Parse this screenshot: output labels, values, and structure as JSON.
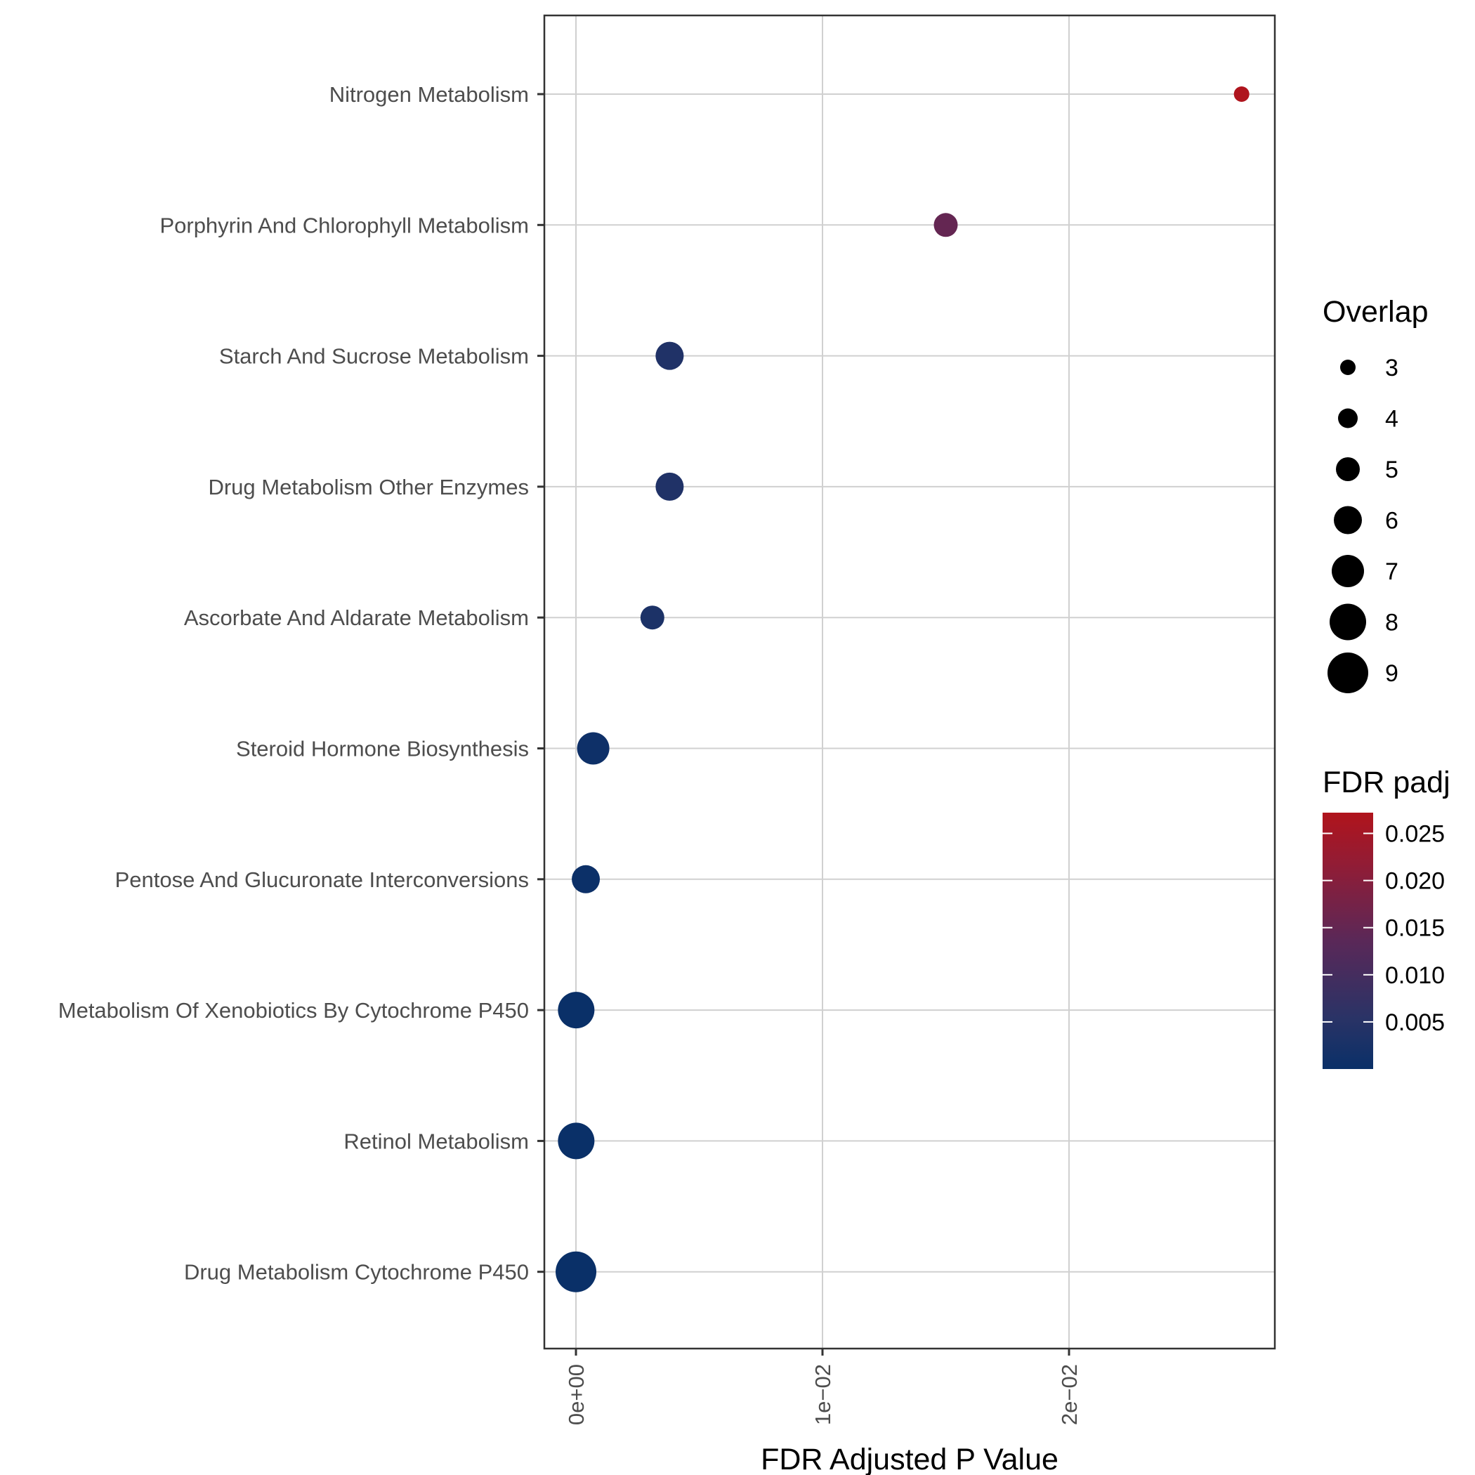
{
  "chart_data": {
    "type": "scatter",
    "xlabel": "FDR Adjusted P Value",
    "ylabel": "",
    "xlim": [
      -0.0013,
      0.0283
    ],
    "x_ticks": [
      0,
      0.01,
      0.02
    ],
    "x_tick_labels": [
      "0e+00",
      "1e−02",
      "2e−02"
    ],
    "grid": true,
    "categories": [
      "Nitrogen Metabolism",
      "Porphyrin And Chlorophyll Metabolism",
      "Starch And Sucrose Metabolism",
      "Drug Metabolism Other Enzymes",
      "Ascorbate And Aldarate Metabolism",
      "Steroid Hormone Biosynthesis",
      "Pentose And Glucuronate Interconversions",
      "Metabolism Of Xenobiotics By Cytochrome P450",
      "Retinol Metabolism",
      "Drug Metabolism Cytochrome P450"
    ],
    "points": [
      {
        "category": "Nitrogen Metabolism",
        "x": 0.027,
        "overlap": 3
      },
      {
        "category": "Porphyrin And Chlorophyll Metabolism",
        "x": 0.015,
        "overlap": 5
      },
      {
        "category": "Starch And Sucrose Metabolism",
        "x": 0.0038,
        "overlap": 6
      },
      {
        "category": "Drug Metabolism Other Enzymes",
        "x": 0.0038,
        "overlap": 6
      },
      {
        "category": "Ascorbate And Aldarate Metabolism",
        "x": 0.0031,
        "overlap": 5
      },
      {
        "category": "Steroid Hormone Biosynthesis",
        "x": 0.0007,
        "overlap": 7
      },
      {
        "category": "Pentose And Glucuronate Interconversions",
        "x": 0.0004,
        "overlap": 6
      },
      {
        "category": "Metabolism Of Xenobiotics By Cytochrome P450",
        "x": 1e-05,
        "overlap": 8
      },
      {
        "category": "Retinol Metabolism",
        "x": 1e-05,
        "overlap": 8
      },
      {
        "category": "Drug Metabolism Cytochrome P450",
        "x": 1e-06,
        "overlap": 9
      }
    ],
    "legend_size": {
      "title": "Overlap",
      "values": [
        3,
        4,
        5,
        6,
        7,
        8,
        9
      ]
    },
    "legend_color": {
      "title": "FDR padj",
      "range": [
        1e-06,
        0.0272
      ],
      "ticks": [
        0.025,
        0.02,
        0.015,
        0.01,
        0.005
      ],
      "tick_labels": [
        "0.025",
        "0.020",
        "0.015",
        "0.010",
        "0.005"
      ],
      "low_color": "#0a3068",
      "high_color": "#b0141c"
    },
    "legend_position": "right"
  }
}
